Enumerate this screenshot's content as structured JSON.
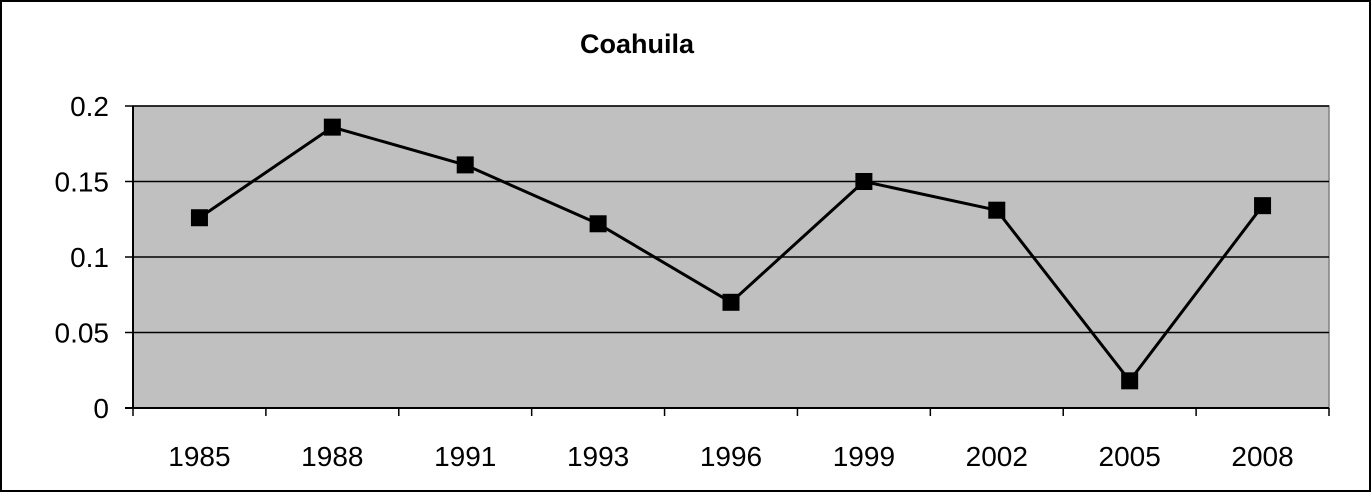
{
  "chart_data": {
    "type": "line",
    "title": "Coahuila",
    "xlabel": "",
    "ylabel": "",
    "categories": [
      "1985",
      "1988",
      "1991",
      "1993",
      "1996",
      "1999",
      "2002",
      "2005",
      "2008"
    ],
    "series": [
      {
        "values": [
          0.126,
          0.186,
          0.161,
          0.122,
          0.07,
          0.15,
          0.131,
          0.018,
          0.134
        ],
        "color": "#000000",
        "marker": "square"
      }
    ],
    "ylim": [
      0,
      0.2
    ],
    "yticks": [
      "0",
      "0.05",
      "0.1",
      "0.15",
      "0.2"
    ],
    "ytick_values": [
      0,
      0.05,
      0.1,
      0.15,
      0.2
    ],
    "grid": true,
    "legend": "none",
    "plot_background": "#c0c0c0"
  }
}
